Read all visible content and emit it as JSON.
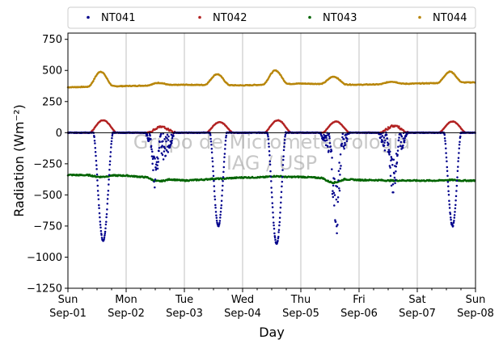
{
  "chart_data": {
    "type": "scatter",
    "xlabel": "Day",
    "ylabel": "Radiation (Wm⁻²)",
    "ylim": [
      -1250,
      800
    ],
    "yticks": [
      -1250,
      -1000,
      -750,
      -500,
      -250,
      0,
      250,
      500,
      750
    ],
    "xlim": [
      "Sun Sep-01",
      "Sun Sep-08"
    ],
    "xtick_labels": [
      [
        "Sun",
        "Sep-01"
      ],
      [
        "Mon",
        "Sep-02"
      ],
      [
        "Tue",
        "Sep-03"
      ],
      [
        "Wed",
        "Sep-04"
      ],
      [
        "Thu",
        "Sep-05"
      ],
      [
        "Fri",
        "Sep-06"
      ],
      [
        "Sat",
        "Sep-07"
      ],
      [
        "Sun",
        "Sep-08"
      ]
    ],
    "grid": "vertical",
    "legend_position": "top, horizontal, outside plot",
    "watermark": [
      "Grupo de Micrometeorologia",
      "IAG / USP"
    ],
    "reference_line": 0,
    "series": [
      {
        "name": "NT041",
        "color": "#00008b",
        "kind": "shortwave net",
        "days": [
          {
            "day": "Sep-01",
            "peak": -870,
            "peak_hour": 14.5,
            "width_h": 4.0
          },
          {
            "day": "Sep-02",
            "peak": -430,
            "peak_hour": 12.0,
            "width_h": 2.5,
            "irregular": true
          },
          {
            "day": "Sep-03",
            "peak": -750,
            "peak_hour": 14.0,
            "width_h": 3.5
          },
          {
            "day": "Sep-04",
            "peak": -895,
            "peak_hour": 14.0,
            "width_h": 3.8
          },
          {
            "day": "Sep-05",
            "peak": -820,
            "peak_hour": 14.5,
            "width_h": 3.0,
            "irregular": true
          },
          {
            "day": "Sep-06",
            "peak": -470,
            "peak_hour": 14.0,
            "width_h": 3.0,
            "irregular": true
          },
          {
            "day": "Sep-07",
            "peak": -750,
            "peak_hour": 14.5,
            "width_h": 3.5
          }
        ]
      },
      {
        "name": "NT042",
        "color": "#b22222",
        "kind": "shortwave reflected",
        "days": [
          {
            "day": "Sep-01",
            "peak": 100
          },
          {
            "day": "Sep-02",
            "peak": 45
          },
          {
            "day": "Sep-03",
            "peak": 85
          },
          {
            "day": "Sep-04",
            "peak": 100
          },
          {
            "day": "Sep-05",
            "peak": 90
          },
          {
            "day": "Sep-06",
            "peak": 55
          },
          {
            "day": "Sep-07",
            "peak": 90
          }
        ]
      },
      {
        "name": "NT043",
        "color": "#006400",
        "kind": "longwave net",
        "daily": [
          {
            "day": "Sep-01",
            "night": -340,
            "day_value": -355
          },
          {
            "day": "Sep-02",
            "night": -345,
            "day_value": -390
          },
          {
            "day": "Sep-03",
            "night": -385,
            "day_value": -370
          },
          {
            "day": "Sep-04",
            "night": -360,
            "day_value": -350
          },
          {
            "day": "Sep-05",
            "night": -355,
            "day_value": -400
          },
          {
            "day": "Sep-06",
            "night": -380,
            "day_value": -385
          },
          {
            "day": "Sep-07",
            "night": -385,
            "day_value": -380
          }
        ]
      },
      {
        "name": "NT044",
        "color": "#b8860b",
        "kind": "longwave incoming",
        "daily": [
          {
            "day": "Sep-01",
            "night": 365,
            "peak": 490
          },
          {
            "day": "Sep-02",
            "night": 375,
            "peak": 400
          },
          {
            "day": "Sep-03",
            "night": 385,
            "peak": 470
          },
          {
            "day": "Sep-04",
            "night": 380,
            "peak": 500
          },
          {
            "day": "Sep-05",
            "night": 395,
            "peak": 450
          },
          {
            "day": "Sep-06",
            "night": 385,
            "peak": 410
          },
          {
            "day": "Sep-07",
            "night": 395,
            "peak": 490
          },
          {
            "day": "Sep-08",
            "night": 405
          }
        ]
      }
    ]
  }
}
